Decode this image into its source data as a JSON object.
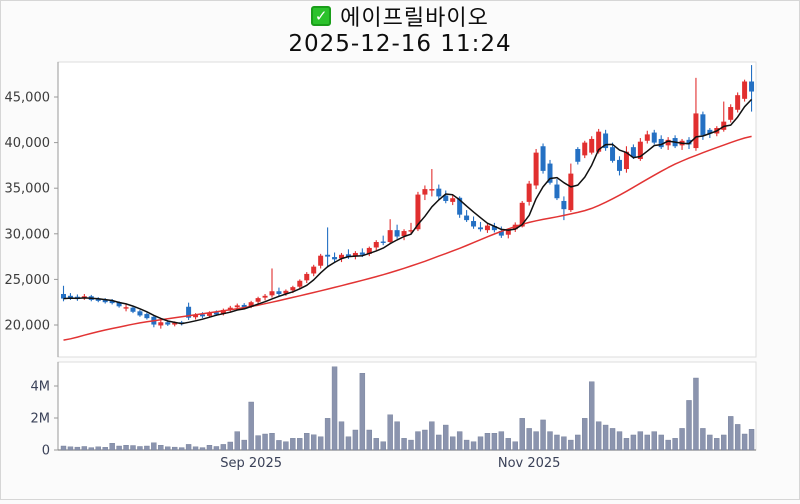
{
  "header": {
    "title": "에이프릴바이오",
    "timestamp": "2025-12-16 11:24"
  },
  "colors": {
    "up_candle": "#e12f2f",
    "down_candle": "#2470c3",
    "ma_fast": "#111111",
    "ma_slow": "#e23434",
    "volume_bar": "#8b94ae",
    "volume_bar_edge": "#707a96",
    "price_label": "#3c3c3c",
    "slate_label": "#3a4158",
    "plot_border": "#dddddd",
    "axis_line": "#9a9a9a",
    "checkbox_green": "#2cc22c"
  },
  "chart_data": {
    "type": "candlestick+volume",
    "title": "에이프릴바이오",
    "subtitle": "2025-12-16 11:24",
    "price_axis": {
      "tick_values": [
        20000,
        25000,
        30000,
        35000,
        40000,
        45000
      ],
      "tick_labels": [
        "20,000",
        "25,000",
        "30,000",
        "35,000",
        "40,000",
        "45,000"
      ],
      "range": [
        16500,
        48800
      ]
    },
    "volume_axis": {
      "tick_values": [
        0,
        2,
        4
      ],
      "tick_labels": [
        "0",
        "2M",
        "4M"
      ],
      "unit": "millions of shares",
      "range": [
        0,
        5.5
      ]
    },
    "x_axis_labels": [
      {
        "index": 27,
        "label": "Sep 2025"
      },
      {
        "index": 67,
        "label": "Nov 2025"
      }
    ],
    "grid": "off",
    "candles_ohlc": [
      [
        23400,
        24300,
        22600,
        22900
      ],
      [
        23200,
        23500,
        22750,
        23000
      ],
      [
        23100,
        23350,
        22650,
        22850
      ],
      [
        22900,
        23400,
        22750,
        23150
      ],
      [
        23150,
        23300,
        22600,
        22750
      ],
      [
        22900,
        23050,
        22500,
        22650
      ],
      [
        22800,
        22950,
        22350,
        22500
      ],
      [
        22650,
        22850,
        22250,
        22400
      ],
      [
        22500,
        22600,
        21900,
        22050
      ],
      [
        21800,
        22350,
        21500,
        21950
      ],
      [
        21900,
        22000,
        21300,
        21450
      ],
      [
        21500,
        21650,
        20900,
        21050
      ],
      [
        21200,
        21350,
        20600,
        20750
      ],
      [
        20900,
        21000,
        19750,
        20050
      ],
      [
        19950,
        20500,
        19600,
        20300
      ],
      [
        20300,
        20450,
        19900,
        20050
      ],
      [
        20050,
        20400,
        19850,
        20250
      ],
      [
        20300,
        20450,
        19950,
        20100
      ],
      [
        22000,
        22450,
        20550,
        20800
      ],
      [
        20850,
        21300,
        20600,
        21100
      ],
      [
        21150,
        21400,
        20750,
        20950
      ],
      [
        21000,
        21500,
        20850,
        21350
      ],
      [
        21400,
        21600,
        21000,
        21150
      ],
      [
        21200,
        21800,
        21050,
        21650
      ],
      [
        21700,
        22100,
        21450,
        21900
      ],
      [
        21950,
        22350,
        21700,
        22150
      ],
      [
        22200,
        22400,
        21800,
        21950
      ],
      [
        22000,
        22650,
        21850,
        22500
      ],
      [
        22550,
        23100,
        22300,
        22950
      ],
      [
        23000,
        23400,
        22700,
        23200
      ],
      [
        23250,
        26200,
        23000,
        23700
      ],
      [
        23700,
        24100,
        23150,
        23400
      ],
      [
        23450,
        23900,
        23200,
        23750
      ],
      [
        23800,
        24300,
        23500,
        24150
      ],
      [
        24200,
        25000,
        23900,
        24850
      ],
      [
        24900,
        25800,
        24600,
        25600
      ],
      [
        25650,
        26600,
        25350,
        26400
      ],
      [
        26500,
        27800,
        26200,
        27600
      ],
      [
        27700,
        30700,
        26300,
        27500
      ],
      [
        27450,
        27950,
        26850,
        27200
      ],
      [
        27300,
        27900,
        26900,
        27700
      ],
      [
        27750,
        28300,
        27250,
        27500
      ],
      [
        27550,
        28100,
        27200,
        27900
      ],
      [
        27950,
        28400,
        27450,
        27700
      ],
      [
        27800,
        28600,
        27550,
        28450
      ],
      [
        28500,
        29300,
        28200,
        29100
      ],
      [
        29150,
        29800,
        28750,
        29000
      ],
      [
        29100,
        31600,
        28900,
        30400
      ],
      [
        30400,
        31000,
        29450,
        29700
      ],
      [
        29750,
        30500,
        29300,
        30300
      ],
      [
        30350,
        31200,
        29950,
        30400
      ],
      [
        30500,
        34600,
        30300,
        34300
      ],
      [
        34300,
        35300,
        33700,
        34900
      ],
      [
        34800,
        37100,
        34100,
        34900
      ],
      [
        34950,
        35400,
        33750,
        34100
      ],
      [
        34200,
        34750,
        33350,
        33600
      ],
      [
        33500,
        34250,
        33150,
        33900
      ],
      [
        33950,
        34100,
        31750,
        32100
      ],
      [
        32000,
        32600,
        31300,
        31500
      ],
      [
        31400,
        31900,
        30550,
        30800
      ],
      [
        30700,
        31300,
        30250,
        30500
      ],
      [
        30400,
        31100,
        30100,
        30900
      ],
      [
        30850,
        31200,
        30150,
        30400
      ],
      [
        30300,
        30800,
        29550,
        29800
      ],
      [
        29900,
        30600,
        29500,
        30450
      ],
      [
        30500,
        31250,
        30200,
        31000
      ],
      [
        30800,
        33600,
        30700,
        33400
      ],
      [
        33500,
        35800,
        33100,
        35500
      ],
      [
        35300,
        39300,
        34900,
        38900
      ],
      [
        39600,
        39900,
        36600,
        36900
      ],
      [
        37700,
        38100,
        35400,
        35600
      ],
      [
        35400,
        36000,
        33700,
        33900
      ],
      [
        33600,
        34100,
        31500,
        32700
      ],
      [
        32600,
        37700,
        32400,
        36600
      ],
      [
        39300,
        39500,
        37600,
        37900
      ],
      [
        38600,
        40200,
        38300,
        40000
      ],
      [
        38900,
        40700,
        38700,
        40400
      ],
      [
        39000,
        41500,
        38800,
        41200
      ],
      [
        41000,
        41400,
        39100,
        39400
      ],
      [
        39500,
        40000,
        37800,
        38000
      ],
      [
        38100,
        38500,
        36400,
        36900
      ],
      [
        37100,
        39600,
        36700,
        39000
      ],
      [
        39500,
        39800,
        38200,
        38400
      ],
      [
        38200,
        40500,
        38000,
        40100
      ],
      [
        40200,
        41300,
        39900,
        40900
      ],
      [
        41100,
        41400,
        39800,
        40000
      ],
      [
        40400,
        40800,
        39300,
        39500
      ],
      [
        39700,
        40600,
        39200,
        40300
      ],
      [
        40500,
        40800,
        39400,
        39600
      ],
      [
        39700,
        40400,
        39200,
        40200
      ],
      [
        40300,
        40600,
        39300,
        39800
      ],
      [
        39400,
        47100,
        39100,
        43200
      ],
      [
        43100,
        43400,
        40300,
        40800
      ],
      [
        41400,
        41600,
        40500,
        41000
      ],
      [
        41000,
        41800,
        40700,
        41600
      ],
      [
        41400,
        44500,
        41200,
        42300
      ],
      [
        42500,
        44200,
        42200,
        43900
      ],
      [
        43600,
        45500,
        43300,
        45200
      ],
      [
        44800,
        46900,
        44500,
        46700
      ],
      [
        46700,
        48500,
        43400,
        45600
      ]
    ],
    "volumes_m": [
      0.25,
      0.2,
      0.18,
      0.22,
      0.15,
      0.2,
      0.17,
      0.42,
      0.25,
      0.3,
      0.28,
      0.22,
      0.25,
      0.45,
      0.3,
      0.2,
      0.18,
      0.15,
      0.35,
      0.2,
      0.15,
      0.3,
      0.22,
      0.35,
      0.5,
      1.15,
      0.62,
      3.0,
      0.9,
      1.0,
      1.05,
      0.6,
      0.52,
      0.73,
      0.73,
      1.05,
      0.95,
      0.83,
      1.98,
      5.2,
      1.77,
      0.83,
      1.25,
      4.8,
      1.25,
      0.73,
      0.52,
      2.2,
      1.77,
      0.73,
      0.62,
      1.15,
      1.25,
      1.77,
      0.94,
      1.56,
      0.83,
      1.15,
      0.62,
      0.52,
      0.83,
      1.05,
      1.05,
      1.15,
      0.73,
      0.52,
      1.98,
      1.35,
      1.15,
      1.88,
      1.15,
      0.94,
      0.83,
      0.62,
      0.94,
      1.98,
      4.27,
      1.77,
      1.56,
      1.35,
      1.15,
      0.73,
      0.94,
      1.15,
      0.94,
      1.15,
      0.94,
      0.62,
      0.73,
      1.35,
      3.1,
      4.5,
      1.35,
      0.94,
      0.73,
      0.94,
      2.1,
      1.6,
      1.0,
      1.3
    ],
    "ma_fast_window": 5,
    "ma_slow_anchors": [
      [
        0,
        18250
      ],
      [
        5,
        19300
      ],
      [
        11,
        20250
      ],
      [
        17,
        20900
      ],
      [
        23,
        21550
      ],
      [
        28,
        22150
      ],
      [
        34,
        23200
      ],
      [
        40,
        24300
      ],
      [
        46,
        25500
      ],
      [
        51,
        26700
      ],
      [
        57,
        28400
      ],
      [
        63,
        30300
      ],
      [
        67,
        31300
      ],
      [
        72,
        32000
      ],
      [
        76,
        32700
      ],
      [
        80,
        34200
      ],
      [
        84,
        36000
      ],
      [
        88,
        37700
      ],
      [
        92,
        38900
      ],
      [
        96,
        40000
      ],
      [
        99,
        40800
      ]
    ]
  }
}
